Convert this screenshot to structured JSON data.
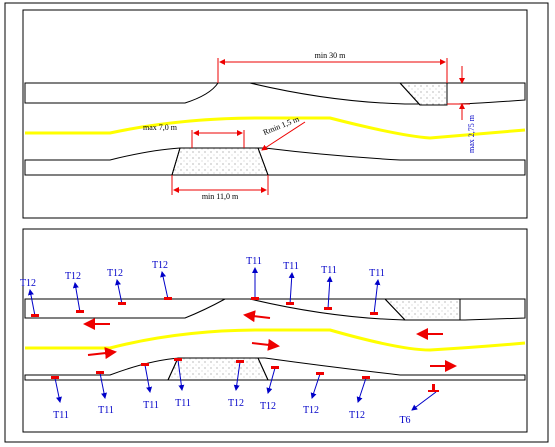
{
  "top_panel": {
    "dimensions": {
      "min_length": "min 30 m",
      "max_width": "max 2,75 m",
      "max_gap": "max 7,0 m",
      "radius": "Rmin 1,5 m",
      "min_island": "min 11,0 m"
    }
  },
  "bottom_panel": {
    "upper_labels": [
      "T12",
      "T12",
      "T12",
      "T12",
      "T11",
      "T11",
      "T11",
      "T11"
    ],
    "lower_labels": [
      "T11",
      "T11",
      "T11",
      "T11",
      "T12",
      "T12",
      "T12",
      "T12",
      "T6"
    ]
  }
}
